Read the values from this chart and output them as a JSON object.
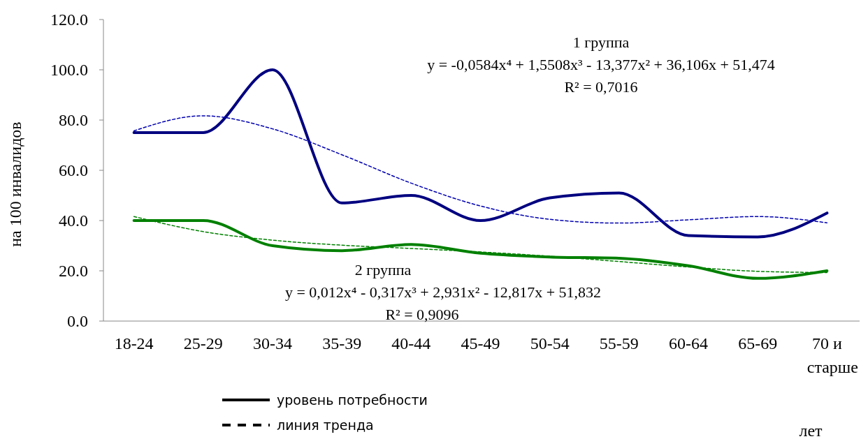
{
  "chart_data": {
    "type": "line",
    "ylabel": "на 100 инвалидов",
    "categories": [
      "18-24",
      "25-29",
      "30-34",
      "35-39",
      "40-44",
      "45-49",
      "50-54",
      "55-59",
      "60-64",
      "65-69",
      "70 и старше"
    ],
    "ylim": [
      0,
      120
    ],
    "yticks": [
      {
        "value": 0,
        "label": "0.0"
      },
      {
        "value": 20,
        "label": "20.0"
      },
      {
        "value": 40,
        "label": "40.0"
      },
      {
        "value": 60,
        "label": "60.0"
      },
      {
        "value": 80,
        "label": "80.0"
      },
      {
        "value": 100,
        "label": "100.0"
      },
      {
        "value": 120,
        "label": "120.0"
      }
    ],
    "series": [
      {
        "color": "#000080",
        "line_style": "solid",
        "values": [
          75,
          75,
          100,
          47,
          50,
          40,
          49,
          51,
          34,
          33.5,
          43
        ]
      },
      {
        "color": "#008000",
        "line_style": "solid",
        "values": [
          40,
          40,
          30,
          28,
          30.5,
          27,
          25.5,
          25,
          22,
          17,
          20
        ]
      },
      {
        "color": "#0000b0",
        "line_style": "dashed",
        "values": [
          75.7,
          81.7,
          76.5,
          66.2,
          54.9,
          45.8,
          40.5,
          39.0,
          40.3,
          41.6,
          39.1
        ]
      },
      {
        "color": "#008000",
        "line_style": "dashed",
        "values": [
          41.6,
          35.6,
          32.2,
          30.2,
          28.9,
          27.5,
          25.8,
          23.7,
          21.5,
          19.8,
          19.3
        ]
      }
    ],
    "annotations": [
      "1 группа",
      "y = -0,0584x⁴ + 1,5508x³ - 13,377x² + 36,106x + 51,474",
      "R² = 0,7016",
      "2 группа",
      "y = 0,012x⁴ - 0,317x³ + 2,931x² - 12,817x + 51,832",
      "R² = 0,9096",
      "уровень потребности",
      "линия тренда",
      "лет"
    ]
  }
}
